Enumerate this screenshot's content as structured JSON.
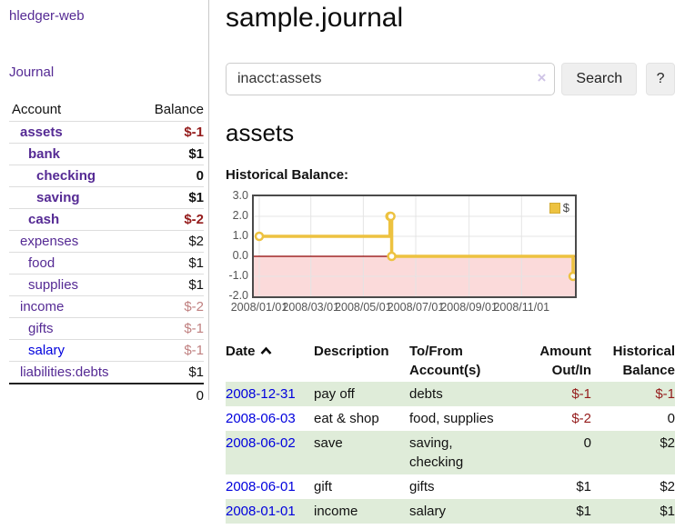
{
  "app": {
    "brand": "hledger-web",
    "nav": "Journal"
  },
  "sidebar": {
    "headers": {
      "account": "Account",
      "balance": "Balance"
    },
    "rows": [
      {
        "name": "assets",
        "balance": "$-1",
        "level": 1,
        "matched": true,
        "balance_class": "neg"
      },
      {
        "name": "bank",
        "balance": "$1",
        "level": 2,
        "matched": true,
        "balance_class": ""
      },
      {
        "name": "checking",
        "balance": "0",
        "level": 3,
        "matched": true,
        "balance_class": ""
      },
      {
        "name": "saving",
        "balance": "$1",
        "level": 3,
        "matched": true,
        "balance_class": ""
      },
      {
        "name": "cash",
        "balance": "$-2",
        "level": 2,
        "matched": true,
        "balance_class": "neg"
      },
      {
        "name": "expenses",
        "balance": "$2",
        "level": 1,
        "matched": false,
        "balance_class": ""
      },
      {
        "name": "food",
        "balance": "$1",
        "level": 2,
        "matched": false,
        "balance_class": ""
      },
      {
        "name": "supplies",
        "balance": "$1",
        "level": 2,
        "matched": false,
        "balance_class": ""
      },
      {
        "name": "income",
        "balance": "$-2",
        "level": 1,
        "matched": false,
        "balance_class": "faded-neg"
      },
      {
        "name": "gifts",
        "balance": "$-1",
        "level": 2,
        "matched": false,
        "balance_class": "faded-neg"
      },
      {
        "name": "salary",
        "balance": "$-1",
        "level": 2,
        "matched": false,
        "balance_class": "faded-neg",
        "link_color": "blue"
      },
      {
        "name": "liabilities:debts",
        "balance": "$1",
        "level": 1,
        "matched": false,
        "balance_class": ""
      }
    ],
    "total": "0"
  },
  "header": {
    "title": "sample.journal"
  },
  "search": {
    "value": "inacct:assets",
    "clear_icon": "×",
    "button_label": "Search",
    "help_label": "?"
  },
  "main": {
    "heading": "assets",
    "chart_title": "Historical Balance:"
  },
  "chart_data": {
    "type": "line",
    "style": "step",
    "title": "Historical Balance",
    "legend": {
      "position": "top-right",
      "entries": [
        "$"
      ]
    },
    "series": [
      {
        "name": "$",
        "color": "#EDC240",
        "points": [
          [
            "2008-01-01",
            1
          ],
          [
            "2008-06-01",
            2
          ],
          [
            "2008-06-02",
            2
          ],
          [
            "2008-06-03",
            0
          ],
          [
            "2008-12-31",
            -1
          ]
        ]
      }
    ],
    "xlim": [
      "2008-01-01",
      "2008-12-31"
    ],
    "ylim": [
      -2,
      3
    ],
    "yticks": [
      {
        "value": 3,
        "label": "3.0"
      },
      {
        "value": 2,
        "label": "2.0"
      },
      {
        "value": 1,
        "label": "1.0"
      },
      {
        "value": 0,
        "label": "0.0"
      },
      {
        "value": -1,
        "label": "-1.0"
      },
      {
        "value": -2,
        "label": "-2.0"
      }
    ],
    "xticks": [
      {
        "date": "2008-01-01",
        "label": "2008/01/01"
      },
      {
        "date": "2008-03-01",
        "label": "2008/03/01"
      },
      {
        "date": "2008-05-01",
        "label": "2008/05/01"
      },
      {
        "date": "2008-07-01",
        "label": "2008/07/01"
      },
      {
        "date": "2008-09-01",
        "label": "2008/09/01"
      },
      {
        "date": "2008-11-01",
        "label": "2008/11/01"
      }
    ],
    "grid": true,
    "grid_color": "#e4e4e4",
    "zero_line_color": "#8e0000",
    "negative_region_color": "#fbdada"
  },
  "register": {
    "headers": [
      {
        "lines": [
          "Date"
        ],
        "align": "left",
        "sort": "asc"
      },
      {
        "lines": [
          "Description"
        ],
        "align": "left"
      },
      {
        "lines": [
          "To/From",
          "Account(s)"
        ],
        "align": "left"
      },
      {
        "lines": [
          "Amount",
          "Out/In"
        ],
        "align": "right"
      },
      {
        "lines": [
          "Historical",
          "Balance"
        ],
        "align": "right"
      }
    ],
    "rows": [
      {
        "date": "2008-12-31",
        "description": "pay off",
        "accounts": [
          "debts"
        ],
        "amount": "$-1",
        "amount_class": "neg",
        "balance": "$-1",
        "balance_class": "neg",
        "shaded": true
      },
      {
        "date": "2008-06-03",
        "description": "eat & shop",
        "accounts": [
          "food, supplies"
        ],
        "amount": "$-2",
        "amount_class": "neg",
        "balance": "0",
        "balance_class": "",
        "shaded": false
      },
      {
        "date": "2008-06-02",
        "description": "save",
        "accounts": [
          "saving,",
          "checking"
        ],
        "amount": "0",
        "amount_class": "",
        "balance": "$2",
        "balance_class": "",
        "shaded": true
      },
      {
        "date": "2008-06-01",
        "description": "gift",
        "accounts": [
          "gifts"
        ],
        "amount": "$1",
        "amount_class": "",
        "balance": "$2",
        "balance_class": "",
        "shaded": false
      },
      {
        "date": "2008-01-01",
        "description": "income",
        "accounts": [
          "salary"
        ],
        "amount": "$1",
        "amount_class": "",
        "balance": "$1",
        "balance_class": "",
        "shaded": true
      }
    ]
  }
}
